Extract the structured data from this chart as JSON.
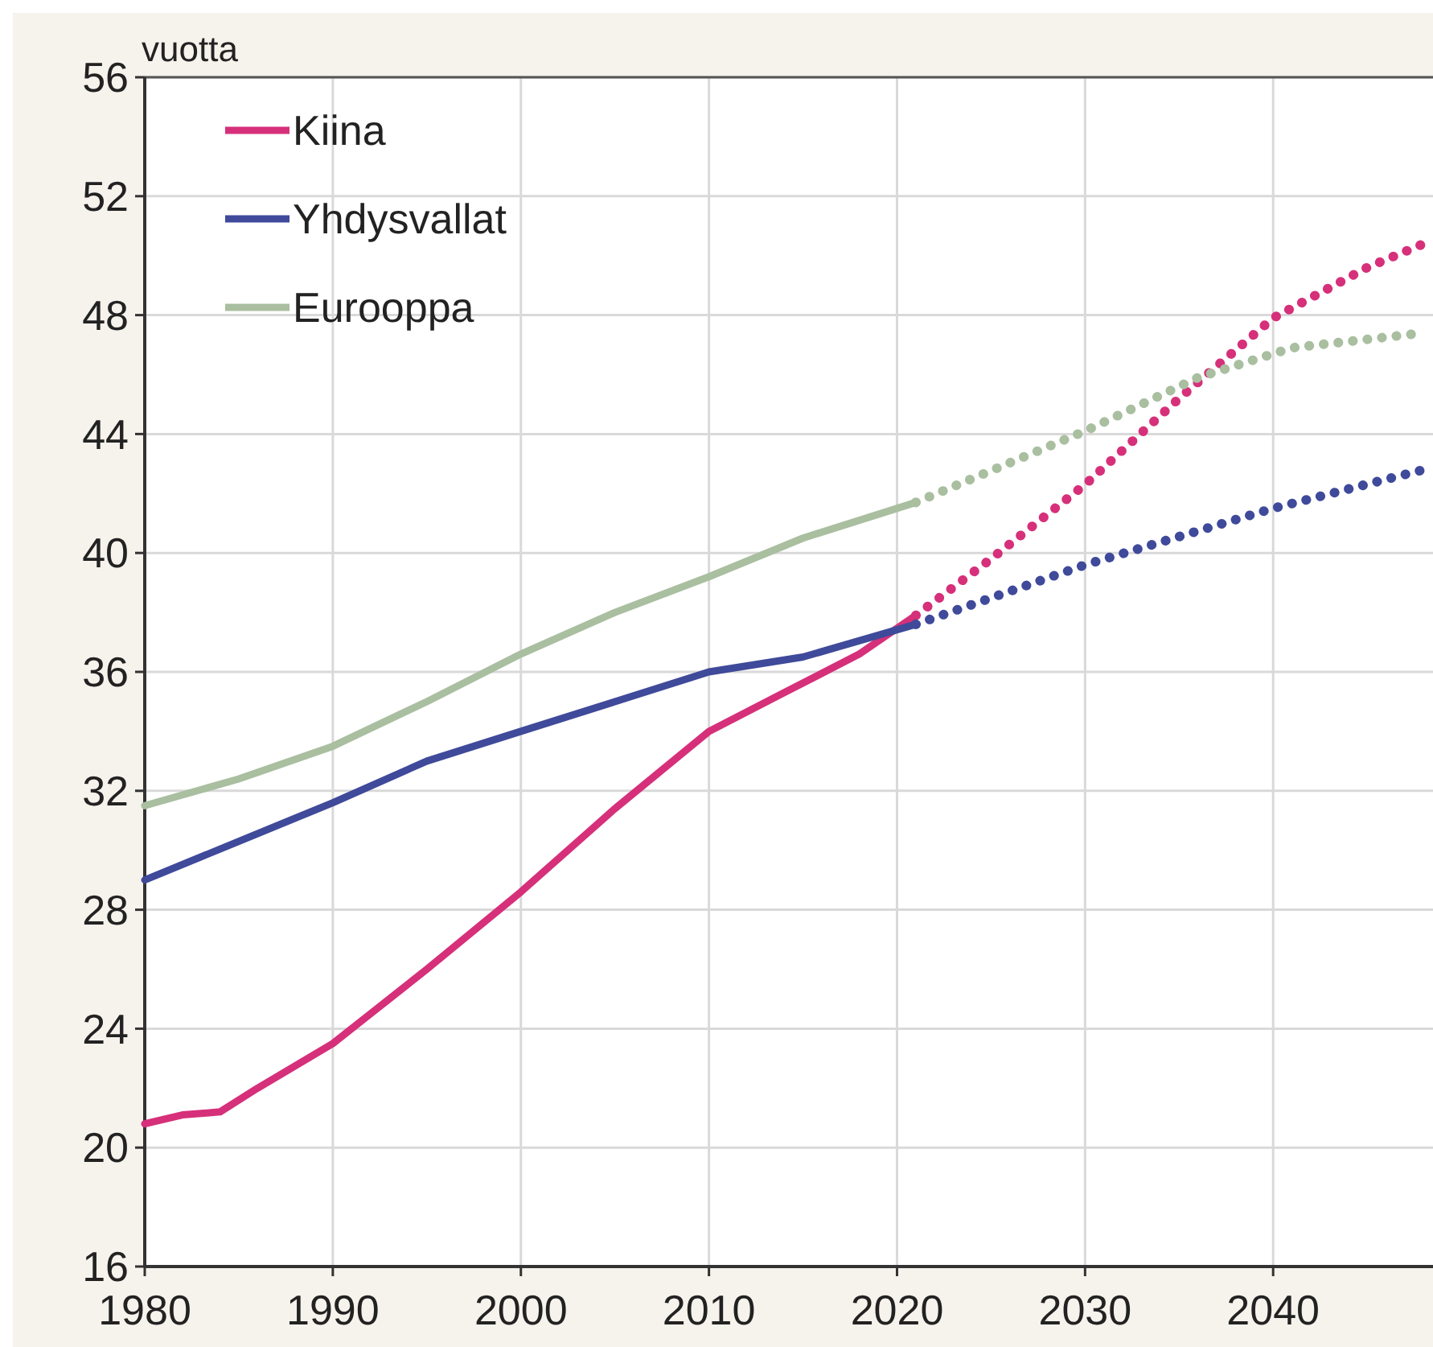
{
  "chart_data": {
    "type": "line",
    "ylabel": "vuotta",
    "xlim": [
      1980,
      2048.5
    ],
    "xticks": [
      1980,
      1990,
      2000,
      2010,
      2020,
      2030,
      2040
    ],
    "ylim": [
      16,
      56
    ],
    "yticks": [
      16,
      20,
      24,
      28,
      32,
      36,
      40,
      44,
      48,
      52,
      56
    ],
    "grid": true,
    "legend": "top left",
    "series": [
      {
        "name": "Kiina",
        "color": "#d6307a",
        "line_style": "solid",
        "x": [
          1980,
          1982,
          1984,
          1986,
          1990,
          1995,
          2000,
          2005,
          2010,
          2014,
          2018,
          2021
        ],
        "values": [
          20.8,
          21.1,
          21.2,
          22.0,
          23.5,
          26.0,
          28.6,
          31.4,
          34.0,
          35.3,
          36.6,
          37.9
        ]
      },
      {
        "name": "Yhdysvallat",
        "color": "#3f4a9a",
        "line_style": "solid",
        "x": [
          1980,
          1985,
          1990,
          1995,
          2000,
          2005,
          2010,
          2015,
          2021
        ],
        "values": [
          29.0,
          30.3,
          31.6,
          33.0,
          34.0,
          35.0,
          36.0,
          36.5,
          37.6
        ]
      },
      {
        "name": "Eurooppa",
        "color": "#a9bfa0",
        "line_style": "solid",
        "x": [
          1980,
          1985,
          1990,
          1995,
          2000,
          2005,
          2010,
          2015,
          2021
        ],
        "values": [
          31.5,
          32.4,
          33.5,
          35.0,
          36.6,
          38.0,
          39.2,
          40.5,
          41.7
        ]
      },
      {
        "color": "#d6307a",
        "line_style": "dotted",
        "x": [
          2021,
          2025,
          2030,
          2035,
          2040,
          2045,
          2048
        ],
        "values": [
          37.9,
          39.8,
          42.3,
          45.2,
          47.9,
          49.6,
          50.4
        ]
      },
      {
        "color": "#3f4a9a",
        "line_style": "dotted",
        "x": [
          2021,
          2030,
          2040,
          2048
        ],
        "values": [
          37.6,
          39.6,
          41.5,
          42.8
        ]
      },
      {
        "color": "#a9bfa0",
        "line_style": "dotted",
        "x": [
          2021,
          2030,
          2036,
          2041,
          2048
        ],
        "values": [
          41.7,
          44.1,
          45.9,
          46.9,
          47.4
        ]
      }
    ]
  }
}
